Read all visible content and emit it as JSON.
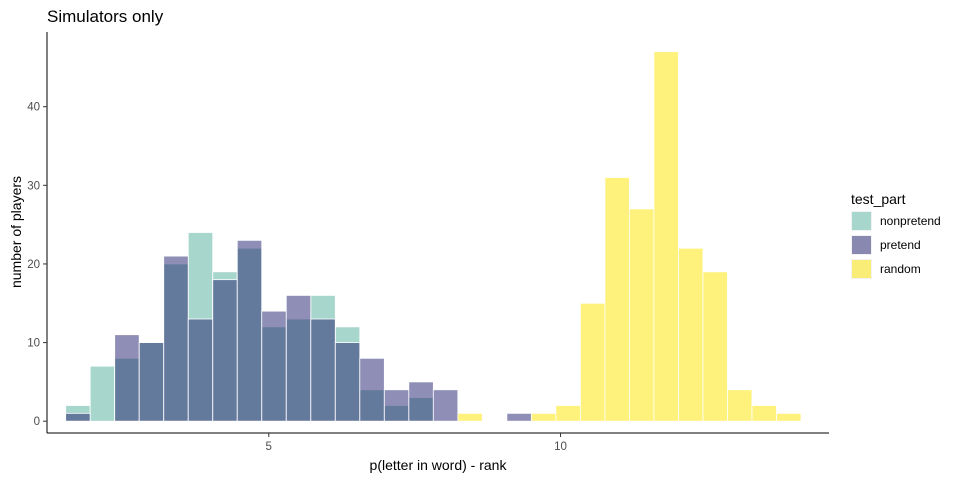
{
  "chart_data": {
    "type": "bar",
    "subtype": "overlapping histogram",
    "title": "Simulators only",
    "xlabel": "p(letter in word) - rank",
    "ylabel": "number of players",
    "xlim": [
      1.2,
      14.6
    ],
    "ylim": [
      -1.5,
      49.5
    ],
    "xticks": [
      5,
      10
    ],
    "yticks": [
      0,
      10,
      20,
      30,
      40
    ],
    "grid": false,
    "legend_title": "test_part",
    "legend_position": "right",
    "bin_width": 0.42,
    "series": [
      {
        "name": "nonpretend",
        "color": "#a6d6cc",
        "opacity": 1,
        "bins": [
          {
            "x": 1.73,
            "y": 2
          },
          {
            "x": 2.15,
            "y": 7
          },
          {
            "x": 2.57,
            "y": 8
          },
          {
            "x": 2.99,
            "y": 10
          },
          {
            "x": 3.41,
            "y": 20
          },
          {
            "x": 3.83,
            "y": 24
          },
          {
            "x": 4.25,
            "y": 19
          },
          {
            "x": 4.67,
            "y": 22
          },
          {
            "x": 5.09,
            "y": 12
          },
          {
            "x": 5.51,
            "y": 13
          },
          {
            "x": 5.93,
            "y": 16
          },
          {
            "x": 6.35,
            "y": 12
          },
          {
            "x": 6.77,
            "y": 4
          },
          {
            "x": 7.19,
            "y": 2
          },
          {
            "x": 7.61,
            "y": 3
          }
        ]
      },
      {
        "name": "pretend",
        "color": "#1f1e6e",
        "opacity": 0.5,
        "bins": [
          {
            "x": 1.73,
            "y": 1
          },
          {
            "x": 2.15,
            "y": 0
          },
          {
            "x": 2.57,
            "y": 11
          },
          {
            "x": 2.99,
            "y": 10
          },
          {
            "x": 3.41,
            "y": 21
          },
          {
            "x": 3.83,
            "y": 13
          },
          {
            "x": 4.25,
            "y": 18
          },
          {
            "x": 4.67,
            "y": 23
          },
          {
            "x": 5.09,
            "y": 14
          },
          {
            "x": 5.51,
            "y": 16
          },
          {
            "x": 5.93,
            "y": 13
          },
          {
            "x": 6.35,
            "y": 10
          },
          {
            "x": 6.77,
            "y": 8
          },
          {
            "x": 7.19,
            "y": 4
          },
          {
            "x": 7.61,
            "y": 5
          },
          {
            "x": 8.03,
            "y": 4
          },
          {
            "x": 9.29,
            "y": 1
          }
        ]
      },
      {
        "name": "random",
        "color": "#fde725",
        "opacity": 0.6,
        "bins": [
          {
            "x": 8.45,
            "y": 1
          },
          {
            "x": 9.71,
            "y": 1
          },
          {
            "x": 10.13,
            "y": 2
          },
          {
            "x": 10.55,
            "y": 15
          },
          {
            "x": 10.97,
            "y": 31
          },
          {
            "x": 11.39,
            "y": 27
          },
          {
            "x": 11.81,
            "y": 47
          },
          {
            "x": 12.23,
            "y": 22
          },
          {
            "x": 12.65,
            "y": 19
          },
          {
            "x": 13.07,
            "y": 4
          },
          {
            "x": 13.49,
            "y": 2
          },
          {
            "x": 13.91,
            "y": 1
          }
        ]
      }
    ]
  }
}
